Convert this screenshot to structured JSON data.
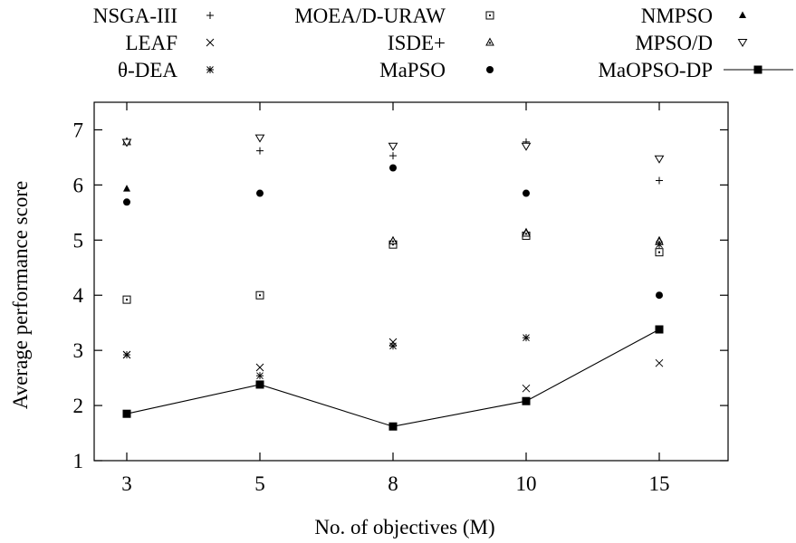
{
  "chart_data": {
    "type": "scatter",
    "xlabel": "No. of objectives (M)",
    "ylabel": "Average performance score",
    "categories": [
      "3",
      "5",
      "8",
      "10",
      "15"
    ],
    "ylim": [
      1,
      7.5
    ],
    "yticks": [
      1,
      2,
      3,
      4,
      5,
      6,
      7
    ],
    "grid": false,
    "legend_position": "top",
    "series": [
      {
        "name": "NSGA-III",
        "marker": "plus",
        "values": [
          6.78,
          6.62,
          6.53,
          6.78,
          6.08
        ]
      },
      {
        "name": "MOEA/D-URAW",
        "marker": "square-open-dot",
        "values": [
          3.92,
          4.0,
          4.92,
          5.08,
          4.78
        ]
      },
      {
        "name": "NMPSO",
        "marker": "triangle-filled",
        "values": [
          5.93,
          null,
          5.0,
          5.15,
          5.0
        ]
      },
      {
        "name": "LEAF",
        "marker": "cross",
        "values": [
          2.92,
          2.69,
          3.15,
          2.31,
          2.77
        ]
      },
      {
        "name": "ISDE+",
        "marker": "triangle-dot",
        "values": [
          6.78,
          null,
          4.98,
          5.12,
          4.97
        ]
      },
      {
        "name": "MPSO/D",
        "marker": "triangle-down-open",
        "values": [
          6.77,
          6.85,
          6.7,
          6.7,
          6.47
        ]
      },
      {
        "name": "θ-DEA",
        "marker": "star",
        "values": [
          2.92,
          2.54,
          3.08,
          3.23,
          4.92
        ]
      },
      {
        "name": "MaPSO",
        "marker": "circle-filled",
        "values": [
          5.69,
          5.85,
          6.31,
          5.85,
          4.0
        ]
      },
      {
        "name": "MaOPSO-DP",
        "marker": "square-filled-line",
        "values": [
          1.85,
          2.38,
          1.62,
          2.08,
          3.38
        ]
      }
    ]
  }
}
